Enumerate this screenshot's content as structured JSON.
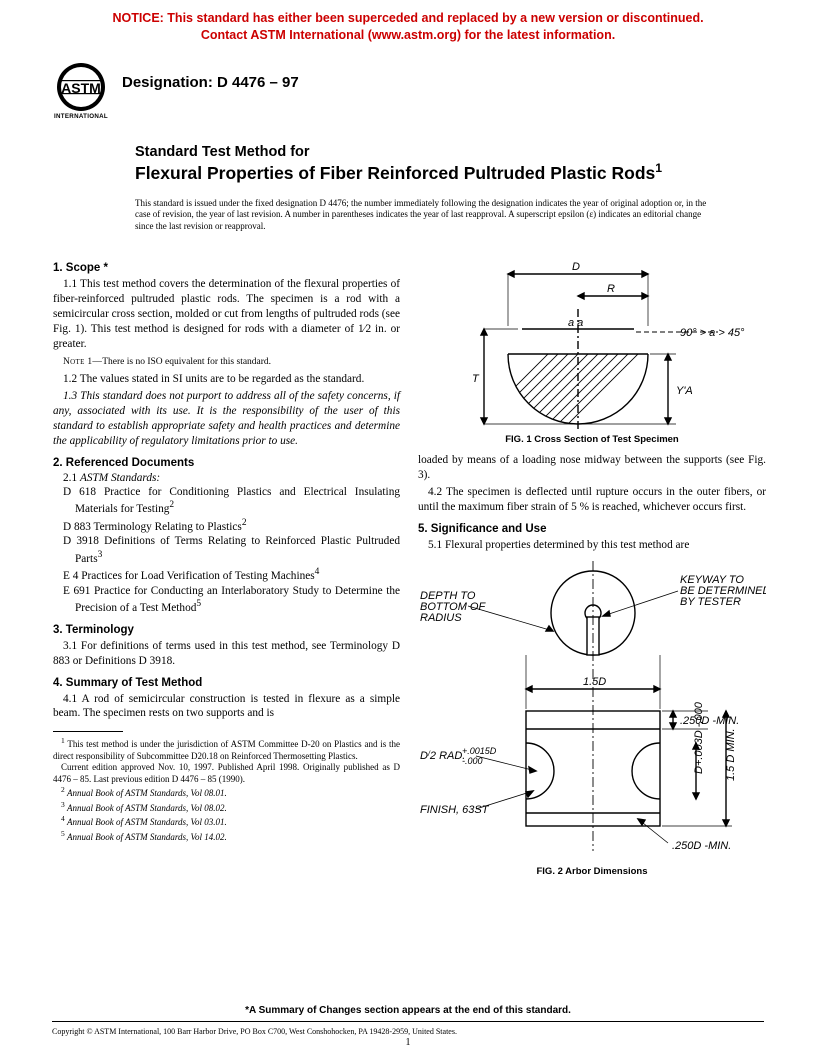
{
  "notice": {
    "line1": "NOTICE: This standard has either been superceded and replaced by a new version or discontinued.",
    "line2": "Contact ASTM International (www.astm.org) for the latest information.",
    "color": "#cc0000"
  },
  "logo": {
    "label_top": "ASTM",
    "label_bottom": "INTERNATIONAL"
  },
  "designation": "Designation: D 4476 – 97",
  "title": {
    "lead": "Standard Test Method for",
    "main": "Flexural Properties of Fiber Reinforced Pultruded Plastic Rods",
    "sup": "1"
  },
  "issuance": "This standard is issued under the fixed designation D 4476; the number immediately following the designation indicates the year of original adoption or, in the case of revision, the year of last revision. A number in parentheses indicates the year of last reapproval. A superscript epsilon (ε) indicates an editorial change since the last revision or reapproval.",
  "sections": {
    "scope": {
      "head": "1. Scope *",
      "p1": "1.1 This test method covers the determination of the flexural properties of fiber-reinforced pultruded plastic rods. The specimen is a rod with a semicircular cross section, molded or cut from lengths of pultruded rods (see Fig. 1). This test method is designed for rods with a diameter of 1⁄2 in. or greater.",
      "note1_lead": "Note 1—",
      "note1": "There is no ISO equivalent for this standard.",
      "p2": "1.2 The values stated in SI units are to be regarded as the standard.",
      "p3": "1.3 This standard does not purport to address all of the safety concerns, if any, associated with its use. It is the responsibility of the user of this standard to establish appropriate safety and health practices and determine the applicability of regulatory limitations prior to use."
    },
    "refdocs": {
      "head": "2. Referenced Documents",
      "sub": "2.1 ASTM Standards:",
      "items": [
        {
          "t": "D 618 Practice for Conditioning Plastics and Electrical Insulating Materials for Testing",
          "s": "2"
        },
        {
          "t": "D 883 Terminology Relating to Plastics",
          "s": "2"
        },
        {
          "t": "D 3918 Definitions of Terms Relating to Reinforced Plastic Pultruded Parts",
          "s": "3"
        },
        {
          "t": "E 4 Practices for Load Verification of Testing Machines",
          "s": "4"
        },
        {
          "t": "E 691 Practice for Conducting an Interlaboratory Study to Determine the Precision of a Test Method",
          "s": "5"
        }
      ]
    },
    "terminology": {
      "head": "3. Terminology",
      "p1": "3.1 For definitions of terms used in this test method, see Terminology D 883 or Definitions D 3918."
    },
    "summary": {
      "head": "4. Summary of Test Method",
      "p1": "4.1 A rod of semicircular construction is tested in flexure as a simple beam. The specimen rests on two supports and is",
      "p1_cont": "loaded by means of a loading nose midway between the supports (see Fig. 3).",
      "p2": "4.2 The specimen is deflected until rupture occurs in the outer fibers, or until the maximum fiber strain of 5 % is reached, whichever occurs first."
    },
    "significance": {
      "head": "5. Significance and Use",
      "p1": "5.1 Flexural properties determined by this test method are"
    }
  },
  "footnotes": {
    "f1a": "This test method is under the jurisdiction of ASTM Committee D-20 on Plastics and is the direct responsibility of Subcommittee D20.18 on Reinforced Thermosetting Plastics.",
    "f1b": "Current edition approved Nov. 10, 1997. Published April 1998. Originally published as D 4476 – 85. Last previous edition D 4476 – 85 (1990).",
    "f2": "Annual Book of ASTM Standards, Vol 08.01.",
    "f3": "Annual Book of ASTM Standards, Vol 08.02.",
    "f4": "Annual Book of ASTM Standards, Vol 03.01.",
    "f5": "Annual Book of ASTM Standards, Vol 14.02."
  },
  "fig1": {
    "caption": "FIG. 1 Cross Section of Test Specimen",
    "labels": {
      "D": "D",
      "R": "R",
      "T": "T",
      "YA": "Y'A",
      "aa": "a a",
      "angle": "90° > a > 45°"
    }
  },
  "fig2": {
    "caption": "FIG. 2 Arbor Dimensions",
    "labels": {
      "depth": "DEPTH TO BOTTOM OF RADIUS",
      "keyway": "KEYWAY TO BE DETERMINED BY TESTER",
      "span": "1.5D",
      "top_min": ".250D -MIN.",
      "bot_min": ".250D -MIN.",
      "rad": "D/2 RAD.",
      "tol": "+.0015D\n-.000",
      "finish": "FINISH, 63ST",
      "height_tol": "D+.003D\n  -.000",
      "height": "1.5 D MIN."
    }
  },
  "changes_note": "*A Summary of Changes section appears at the end of this standard.",
  "copyright": "Copyright © ASTM International, 100 Barr Harbor Drive, PO Box C700, West Conshohocken, PA 19428-2959, United States.",
  "pagenum": "1"
}
